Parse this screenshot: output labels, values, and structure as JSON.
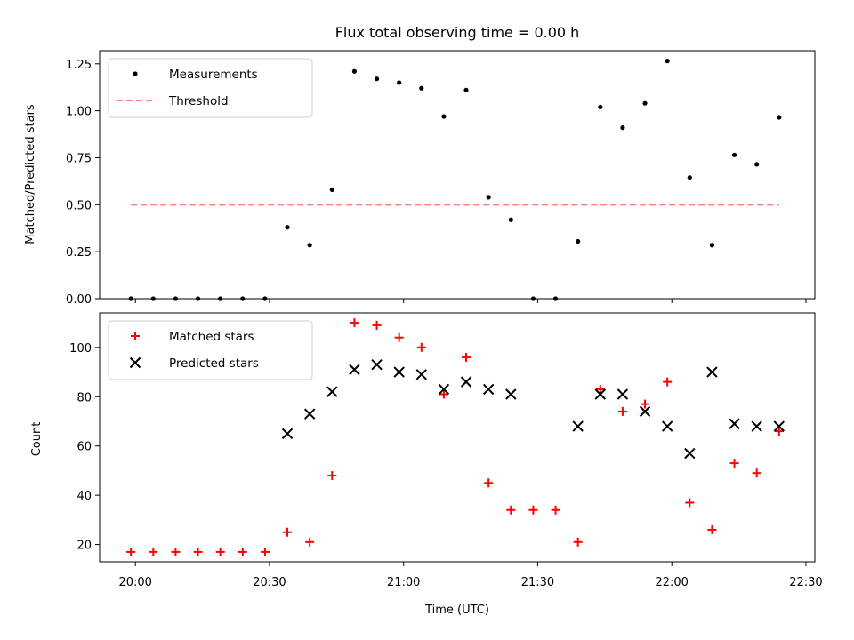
{
  "chart_data": [
    {
      "type": "scatter",
      "title": "Flux total observing time = 0.00 h",
      "xlabel": "",
      "ylabel": "Matched/Predicted stars",
      "xlim": [
        "19:52",
        "22:32"
      ],
      "ylim": [
        0,
        1.32
      ],
      "yticks": [
        "0.00",
        "0.25",
        "0.50",
        "0.75",
        "1.00",
        "1.25"
      ],
      "ytick_values": [
        0,
        0.25,
        0.5,
        0.75,
        1.0,
        1.25
      ],
      "legend_position": "upper-left",
      "series": [
        {
          "name": "Measurements",
          "kind": "dot",
          "color": "#000000",
          "x": [
            "19:59",
            "20:04",
            "20:09",
            "20:14",
            "20:19",
            "20:24",
            "20:29",
            "20:34",
            "20:39",
            "20:44",
            "20:49",
            "20:54",
            "20:59",
            "21:04",
            "21:09",
            "21:14",
            "21:19",
            "21:24",
            "21:29",
            "21:34",
            "21:39",
            "21:44",
            "21:49",
            "21:54",
            "21:59",
            "22:04",
            "22:09",
            "22:14",
            "22:19",
            "22:24"
          ],
          "y": [
            0,
            0,
            0,
            0,
            0,
            0,
            0,
            0.38,
            0.285,
            0.58,
            1.21,
            1.17,
            1.15,
            1.12,
            0.97,
            1.11,
            0.54,
            0.42,
            0,
            0,
            0.305,
            1.02,
            0.91,
            1.04,
            1.265,
            0.645,
            0.285,
            0.765,
            0.715,
            0.965
          ]
        },
        {
          "name": "Threshold",
          "kind": "dashed-line",
          "color": "#ff7f7f",
          "x": [
            "19:59",
            "22:24"
          ],
          "y": [
            0.5,
            0.5
          ]
        }
      ]
    },
    {
      "type": "scatter",
      "title": "",
      "xlabel": "Time (UTC)",
      "ylabel": "Count",
      "xlim": [
        "19:52",
        "22:32"
      ],
      "ylim": [
        13,
        114
      ],
      "xticks": [
        "20:00",
        "20:30",
        "21:00",
        "21:30",
        "22:00",
        "22:30"
      ],
      "yticks": [
        "20",
        "40",
        "60",
        "80",
        "100"
      ],
      "ytick_values": [
        20,
        40,
        60,
        80,
        100
      ],
      "legend_position": "upper-left",
      "series": [
        {
          "name": "Matched stars",
          "kind": "plus",
          "color": "#ff0000",
          "x": [
            "19:59",
            "20:04",
            "20:09",
            "20:14",
            "20:19",
            "20:24",
            "20:29",
            "20:34",
            "20:39",
            "20:44",
            "20:49",
            "20:54",
            "20:59",
            "21:04",
            "21:09",
            "21:14",
            "21:19",
            "21:24",
            "21:29",
            "21:34",
            "21:39",
            "21:44",
            "21:49",
            "21:54",
            "21:59",
            "22:04",
            "22:09",
            "22:14",
            "22:19",
            "22:24"
          ],
          "y": [
            17,
            17,
            17,
            17,
            17,
            17,
            17,
            25,
            21,
            48,
            110,
            109,
            104,
            100,
            81,
            96,
            45,
            34,
            34,
            34,
            21,
            83,
            74,
            77,
            86,
            37,
            26,
            53,
            49,
            66
          ]
        },
        {
          "name": "Predicted stars",
          "kind": "x",
          "color": "#000000",
          "x": [
            "20:34",
            "20:39",
            "20:44",
            "20:49",
            "20:54",
            "20:59",
            "21:04",
            "21:09",
            "21:14",
            "21:19",
            "21:24",
            "21:39",
            "21:44",
            "21:49",
            "21:54",
            "21:59",
            "22:04",
            "22:09",
            "22:14",
            "22:19",
            "22:24"
          ],
          "y": [
            65,
            73,
            82,
            91,
            93,
            90,
            89,
            83,
            86,
            83,
            81,
            68,
            81,
            81,
            74,
            68,
            57,
            90,
            69,
            68,
            68
          ]
        }
      ]
    }
  ]
}
